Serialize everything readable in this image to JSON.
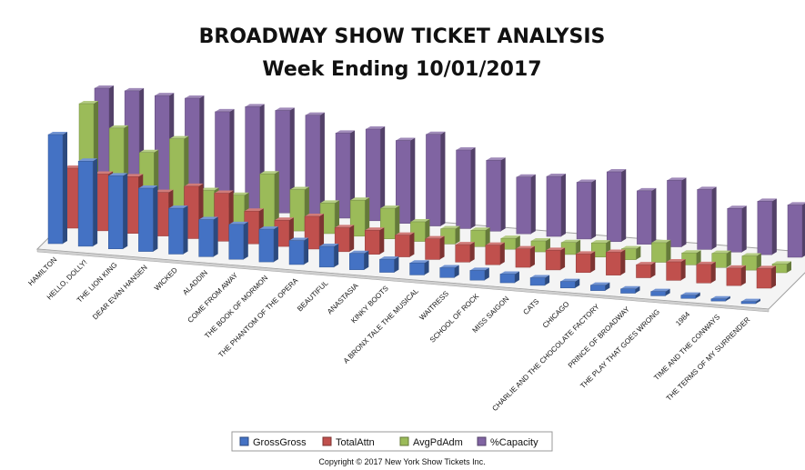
{
  "chart_data": {
    "type": "bar",
    "title": "BROADWAY SHOW TICKET ANALYSIS",
    "subtitle": "Week Ending 10/01/2017",
    "categories": [
      "HAMILTON",
      "HELLO, DOLLY!",
      "THE LION KING",
      "DEAR EVAN HANSEN",
      "WICKED",
      "ALADDIN",
      "COME FROM AWAY",
      "THE BOOK OF MORMON",
      "THE PHANTOM OF THE OPERA",
      "BEAUTIFUL",
      "ANASTASIA",
      "KINKY BOOTS",
      "A BRONX TALE THE MUSICAL",
      "WAITRESS",
      "SCHOOL OF ROCK",
      "MISS SAIGON",
      "CATS",
      "CHICAGO",
      "CHARLIE AND THE CHOCOLATE FACTORY",
      "PRINCE OF BROADWAY",
      "THE PLAY THAT GOES WRONG",
      "1984",
      "TIME AND THE CONWAYS",
      "THE TERMS OF MY SURRENDER"
    ],
    "series": [
      {
        "name": "GrossGross",
        "color": "#4472C4",
        "values": [
          100,
          78,
          67,
          58,
          42,
          34,
          32,
          30,
          22,
          19,
          15,
          12,
          11,
          9,
          9,
          8,
          7,
          6,
          5,
          4,
          4,
          3,
          2,
          2
        ]
      },
      {
        "name": "TotalAttn",
        "color": "#C0504D",
        "values": [
          55,
          52,
          52,
          40,
          48,
          44,
          30,
          24,
          30,
          22,
          22,
          20,
          19,
          16,
          18,
          17,
          18,
          17,
          21,
          12,
          17,
          17,
          16,
          18
        ]
      },
      {
        "name": "AvgPdAdm",
        "color": "#9BBB59",
        "values": [
          100,
          80,
          60,
          75,
          30,
          28,
          50,
          38,
          28,
          33,
          28,
          18,
          14,
          15,
          10,
          10,
          11,
          13,
          10,
          18,
          11,
          13,
          13,
          8
        ]
      },
      {
        "name": "%Capacity",
        "color": "#8064A2",
        "values": [
          100,
          100,
          98,
          98,
          88,
          95,
          94,
          92,
          78,
          84,
          76,
          84,
          72,
          65,
          52,
          55,
          52,
          64,
          49,
          61,
          55,
          40,
          49,
          48
        ]
      }
    ],
    "grid": false,
    "legend": "bottom",
    "note": "Copyright © 2017 New York Show Tickets Inc."
  }
}
